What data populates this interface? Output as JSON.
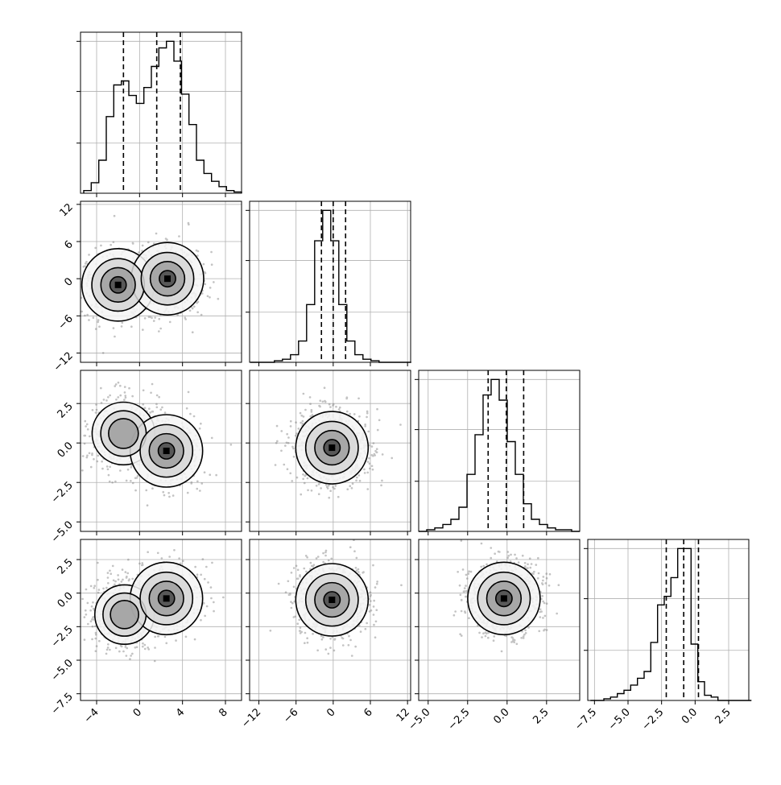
{
  "chart_data": {
    "type": "corner",
    "grid": true,
    "colors": {
      "hist": "#000000",
      "quantile": "#000000",
      "grid": "#b0b0b0",
      "scatter": "#7a7a7a"
    },
    "params": [
      {
        "range": [
          -5.5,
          9.5
        ],
        "ticks": [
          -4,
          0,
          4,
          8
        ],
        "tick_labels": [
          "−4",
          "0",
          "4",
          "8"
        ],
        "hist": {
          "edges_start": -5.2,
          "bin_width": 0.7,
          "counts": [
            2,
            8,
            25,
            58,
            82,
            85,
            74,
            68,
            80,
            96,
            110,
            115,
            100,
            75,
            52,
            25,
            15,
            9,
            5,
            2,
            1
          ]
        },
        "quantiles": [
          -1.5,
          1.6,
          3.8
        ]
      },
      {
        "range": [
          -13.5,
          12.5
        ],
        "ticks": [
          -12,
          -6,
          0,
          6,
          12
        ],
        "tick_labels": [
          "−12",
          "−6",
          "0",
          "6",
          "12"
        ],
        "hist": {
          "edges_start": -13.4,
          "bin_width": 1.3,
          "counts": [
            0,
            0,
            0,
            1,
            2,
            5,
            14,
            38,
            80,
            100,
            80,
            38,
            14,
            5,
            2,
            1,
            0,
            0,
            0,
            0
          ]
        },
        "quantiles": [
          -1.9,
          0.0,
          2.0
        ]
      },
      {
        "range": [
          -5.6,
          4.6
        ],
        "ticks": [
          -5.0,
          -2.5,
          0.0,
          2.5
        ],
        "tick_labels": [
          "−5.0",
          "−2.5",
          "0.0",
          "2.5"
        ],
        "hist": {
          "edges_start": -5.6,
          "bin_width": 0.51,
          "counts": [
            0,
            1,
            2,
            4,
            7,
            14,
            33,
            56,
            79,
            88,
            76,
            52,
            33,
            16,
            7,
            4,
            2,
            1,
            1,
            0
          ]
        },
        "quantiles": [
          -1.2,
          -0.05,
          1.05
        ]
      },
      {
        "range": [
          -8.0,
          4.0
        ],
        "ticks": [
          -7.5,
          -5.0,
          -2.5,
          0.0,
          2.5
        ],
        "tick_labels": [
          "−7.5",
          "−5.0",
          "−2.5",
          "0.0",
          "2.5"
        ],
        "hist": {
          "edges_start": -7.8,
          "bin_width": 0.5,
          "counts": [
            0,
            0,
            1,
            2,
            4,
            6,
            9,
            13,
            17,
            34,
            56,
            61,
            72,
            89,
            89,
            33,
            11,
            3,
            2,
            0,
            0,
            0,
            0,
            0
          ]
        },
        "quantiles": [
          -2.15,
          -0.85,
          0.25
        ]
      }
    ],
    "pairs": [
      {
        "row": 1,
        "col": 0,
        "peaks": [
          [
            -2.0,
            -1.0
          ],
          [
            2.6,
            0.0
          ]
        ],
        "peak_weights": [
          1.0,
          1.0
        ]
      },
      {
        "row": 2,
        "col": 0,
        "peaks": [
          [
            -1.5,
            0.6
          ],
          [
            2.5,
            -0.5
          ]
        ],
        "peak_weights": [
          0.7,
          1.0
        ]
      },
      {
        "row": 2,
        "col": 1,
        "peaks": [
          [
            -0.2,
            -0.3
          ]
        ],
        "peak_weights": [
          1.0
        ]
      },
      {
        "row": 3,
        "col": 0,
        "peaks": [
          [
            -1.4,
            -1.6
          ],
          [
            2.5,
            -0.4
          ]
        ],
        "peak_weights": [
          0.6,
          1.0
        ]
      },
      {
        "row": 3,
        "col": 1,
        "peaks": [
          [
            -0.2,
            -0.5
          ]
        ],
        "peak_weights": [
          1.0
        ]
      },
      {
        "row": 3,
        "col": 2,
        "peaks": [
          [
            -0.2,
            -0.4
          ]
        ],
        "peak_weights": [
          1.0
        ]
      }
    ]
  }
}
